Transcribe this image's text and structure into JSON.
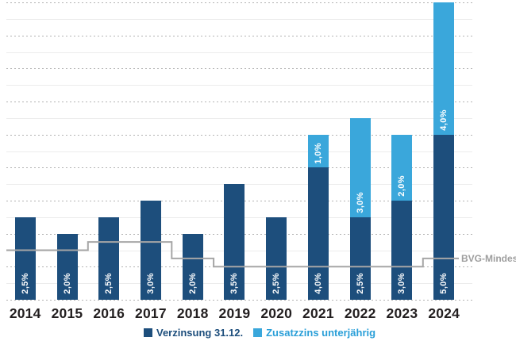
{
  "chart_data": {
    "type": "bar",
    "stacked": true,
    "title": "",
    "xlabel": "",
    "ylabel": "",
    "ylim": [
      0,
      9
    ],
    "grid": {
      "major_step_pct": 1.0,
      "minor_step_pct": 0.5
    },
    "legend_position": "bottom",
    "categories": [
      "2014",
      "2015",
      "2016",
      "2017",
      "2018",
      "2019",
      "2020",
      "2021",
      "2022",
      "2023",
      "2024"
    ],
    "series": [
      {
        "name": "Verzinsung 31.12.",
        "color": "#1d4e7c",
        "values": [
          2.5,
          2.0,
          2.5,
          3.0,
          2.0,
          3.5,
          2.5,
          4.0,
          2.5,
          3.0,
          5.0
        ],
        "display_labels": [
          "2,5%",
          "2,0%",
          "2,5%",
          "3,0%",
          "2,0%",
          "3,5%",
          "2,5%",
          "4,0%",
          "2,5%",
          "3,0%",
          "5,0%"
        ]
      },
      {
        "name": "Zusatzzins unterjährig",
        "color": "#3aa7db",
        "values": [
          0,
          0,
          0,
          0,
          0,
          0,
          0,
          1.0,
          3.0,
          2.0,
          4.0
        ],
        "display_labels": [
          "",
          "",
          "",
          "",
          "",
          "",
          "",
          "1,0%",
          "3,0%",
          "2,0%",
          "4,0%"
        ]
      }
    ],
    "reference_line": {
      "label": "BVG-Mindestzins",
      "color": "#a6a6a6",
      "values_by_year": [
        1.5,
        1.5,
        1.75,
        1.75,
        1.25,
        1.0,
        1.0,
        1.0,
        1.0,
        1.0,
        1.25
      ]
    }
  },
  "legend": {
    "items": [
      {
        "label": "Verzinsung 31.12.",
        "color": "#1d4e7c",
        "text_color": "#1d4e7c"
      },
      {
        "label": "Zusatzzins unterjährig",
        "color": "#3aa7db",
        "text_color": "#2a9fd8"
      }
    ]
  },
  "reference_label": "BVG-Mindestzins",
  "text_colors": {
    "year_labels": "#231f20",
    "bar_value_labels": "#ffffff",
    "reference_label": "#9e9e9e"
  }
}
